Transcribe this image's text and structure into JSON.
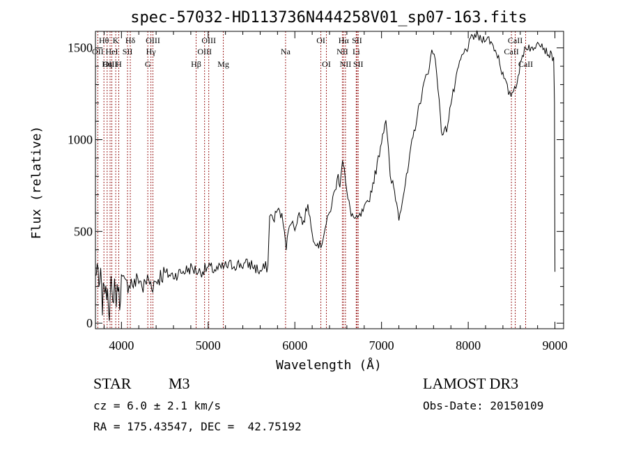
{
  "chart_data": {
    "type": "line",
    "title": "spec-57032-HD113736N444258V01_sp07-163.fits",
    "xlabel": "Wavelength (Å)",
    "ylabel": "Flux (relative)",
    "xlim": [
      3700,
      9100
    ],
    "ylim": [
      -30,
      1590
    ],
    "x_ticks": [
      4000,
      5000,
      6000,
      7000,
      8000,
      9000
    ],
    "y_ticks": [
      0,
      500,
      1000,
      1500
    ],
    "grid": false,
    "series": [
      {
        "name": "flux",
        "x": [
          3700,
          3720,
          3740,
          3760,
          3780,
          3800,
          3820,
          3840,
          3860,
          3880,
          3900,
          3920,
          3940,
          3960,
          3980,
          4000,
          4050,
          4100,
          4150,
          4200,
          4250,
          4300,
          4350,
          4400,
          4450,
          4500,
          4600,
          4700,
          4800,
          4900,
          5000,
          5100,
          5200,
          5300,
          5400,
          5500,
          5600,
          5650,
          5690,
          5710,
          5750,
          5800,
          5850,
          5880,
          5900,
          5950,
          6000,
          6050,
          6100,
          6150,
          6200,
          6250,
          6300,
          6350,
          6400,
          6450,
          6500,
          6520,
          6550,
          6570,
          6600,
          6650,
          6700,
          6750,
          6800,
          6850,
          6900,
          6950,
          7000,
          7050,
          7080,
          7100,
          7130,
          7150,
          7200,
          7250,
          7300,
          7350,
          7400,
          7450,
          7500,
          7550,
          7580,
          7620,
          7650,
          7680,
          7700,
          7750,
          7800,
          7850,
          7900,
          7950,
          8000,
          8050,
          8100,
          8150,
          8200,
          8250,
          8300,
          8350,
          8400,
          8450,
          8480,
          8520,
          8550,
          8600,
          8650,
          8700,
          8750,
          8800,
          8850,
          8900,
          8950,
          8985,
          8995,
          9000
        ],
        "y": [
          250,
          320,
          180,
          260,
          90,
          240,
          150,
          200,
          60,
          210,
          90,
          230,
          120,
          220,
          110,
          240,
          200,
          230,
          210,
          250,
          190,
          240,
          210,
          230,
          260,
          270,
          260,
          280,
          300,
          280,
          300,
          290,
          310,
          320,
          320,
          320,
          280,
          300,
          310,
          600,
          560,
          620,
          580,
          520,
          420,
          560,
          520,
          600,
          540,
          660,
          480,
          440,
          420,
          520,
          600,
          700,
          800,
          760,
          900,
          840,
          700,
          600,
          560,
          580,
          620,
          660,
          760,
          860,
          1000,
          1120,
          940,
          780,
          760,
          720,
          580,
          700,
          820,
          980,
          1100,
          1220,
          1320,
          1400,
          1480,
          1450,
          1300,
          1100,
          1030,
          1060,
          1200,
          1300,
          1420,
          1470,
          1510,
          1560,
          1570,
          1540,
          1560,
          1540,
          1500,
          1450,
          1350,
          1280,
          1240,
          1270,
          1300,
          1400,
          1500,
          1510,
          1480,
          1550,
          1520,
          1480,
          1460,
          1450,
          1200,
          280
        ]
      }
    ],
    "lines": [
      {
        "label": "Hθ",
        "x": 3798,
        "row": 0
      },
      {
        "label": "OII",
        "x": 3727,
        "row": 1
      },
      {
        "label": "OIII",
        "x": 3869,
        "row": 2
      },
      {
        "label": "K",
        "x": 3934,
        "row": 0
      },
      {
        "label": "HeI",
        "x": 3889,
        "row": 1
      },
      {
        "label": "Hη",
        "x": 3835,
        "row": 2
      },
      {
        "label": "SII",
        "x": 4070,
        "row": 1
      },
      {
        "label": "H",
        "x": 3969,
        "row": 2
      },
      {
        "label": "Hδ",
        "x": 4102,
        "row": 0
      },
      {
        "label": "OIII",
        "x": 4363,
        "row": 0
      },
      {
        "label": "Hγ",
        "x": 4340,
        "row": 1
      },
      {
        "label": "G",
        "x": 4304,
        "row": 2
      },
      {
        "label": "Hβ",
        "x": 4861,
        "row": 2
      },
      {
        "label": "OIII",
        "x": 4959,
        "row": 1
      },
      {
        "label": "OIII",
        "x": 5007,
        "row": 0
      },
      {
        "label": "Mg",
        "x": 5175,
        "row": 2
      },
      {
        "label": "Na",
        "x": 5893,
        "row": 1
      },
      {
        "label": "OI",
        "x": 6300,
        "row": 0
      },
      {
        "label": "OI",
        "x": 6364,
        "row": 2
      },
      {
        "label": "Hα",
        "x": 6563,
        "row": 0
      },
      {
        "label": "NII",
        "x": 6548,
        "row": 1
      },
      {
        "label": "NII",
        "x": 6584,
        "row": 2
      },
      {
        "label": "SII",
        "x": 6717,
        "row": 0
      },
      {
        "label": "Li",
        "x": 6708,
        "row": 1
      },
      {
        "label": "SII",
        "x": 6731,
        "row": 2
      },
      {
        "label": "CaII",
        "x": 8542,
        "row": 0
      },
      {
        "label": "CaII",
        "x": 8498,
        "row": 1
      },
      {
        "label": "CaII",
        "x": 8662,
        "row": 2
      }
    ],
    "line_color": "#9b1c1c"
  },
  "info": {
    "class": "STAR",
    "subclass": "M3",
    "cz": "cz = 6.0 ± 2.1 km/s",
    "radec": "RA = 175.43547, DEC =  42.75192",
    "survey": "LAMOST DR3",
    "obsdate": "Obs-Date: 20150109"
  }
}
